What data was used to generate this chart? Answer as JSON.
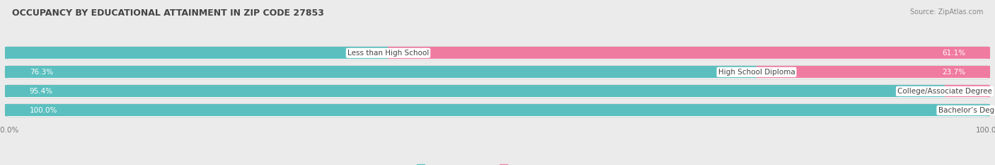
{
  "title": "OCCUPANCY BY EDUCATIONAL ATTAINMENT IN ZIP CODE 27853",
  "source": "Source: ZipAtlas.com",
  "categories": [
    "Less than High School",
    "High School Diploma",
    "College/Associate Degree",
    "Bachelor’s Degree or higher"
  ],
  "owner_values": [
    38.9,
    76.3,
    95.4,
    100.0
  ],
  "renter_values": [
    61.1,
    23.7,
    4.6,
    0.0
  ],
  "owner_color": "#5BBFBF",
  "renter_color": "#F07BA0",
  "background_color": "#ebebeb",
  "bar_background": "#ffffff",
  "row_bg": "#f7f7f7",
  "bar_height": 0.62,
  "figsize": [
    14.06,
    2.33
  ],
  "dpi": 100,
  "label_fontsize": 7.5,
  "title_fontsize": 9,
  "source_fontsize": 7,
  "legend_fontsize": 8,
  "value_fontsize": 7.5,
  "axis_label_fontsize": 7.5
}
